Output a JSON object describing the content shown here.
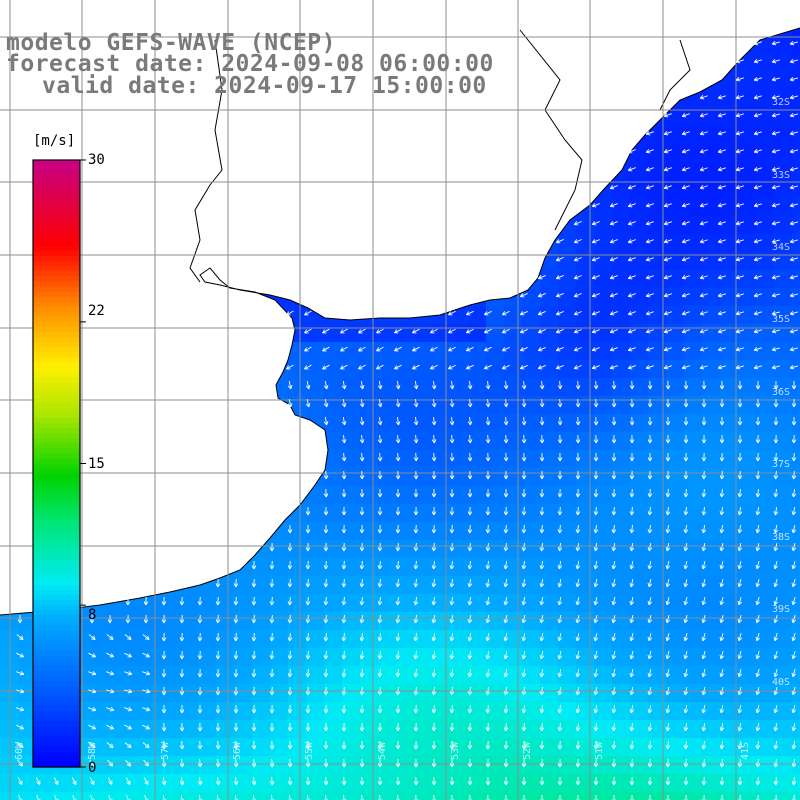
{
  "header": {
    "line1": "modelo GEFS-WAVE (NCEP)",
    "line2": "forecast date: 2024-09-08 06:00:00",
    "line3": "valid date: 2024-09-17 15:00:00"
  },
  "colorbar": {
    "unit": "[m/s]",
    "ticks": [
      "30",
      "22",
      "15",
      "8",
      "0"
    ],
    "tick_values": [
      30,
      22,
      15,
      8,
      0
    ],
    "range": [
      0,
      30
    ]
  },
  "grid_labels": {
    "bottom": [
      "60W",
      "58W",
      "57W",
      "56W",
      "55W",
      "54W",
      "53W",
      "52W",
      "51W",
      "41S"
    ],
    "right": [
      "32S",
      "33S",
      "34S",
      "35S",
      "36S",
      "37S",
      "38S",
      "39S",
      "40S"
    ]
  },
  "colors": {
    "land": "#ffffff",
    "coast": "#000000",
    "grid": "#8c8c8c",
    "arrows": "#ffffff",
    "title_text": "#7a7a7a"
  }
}
